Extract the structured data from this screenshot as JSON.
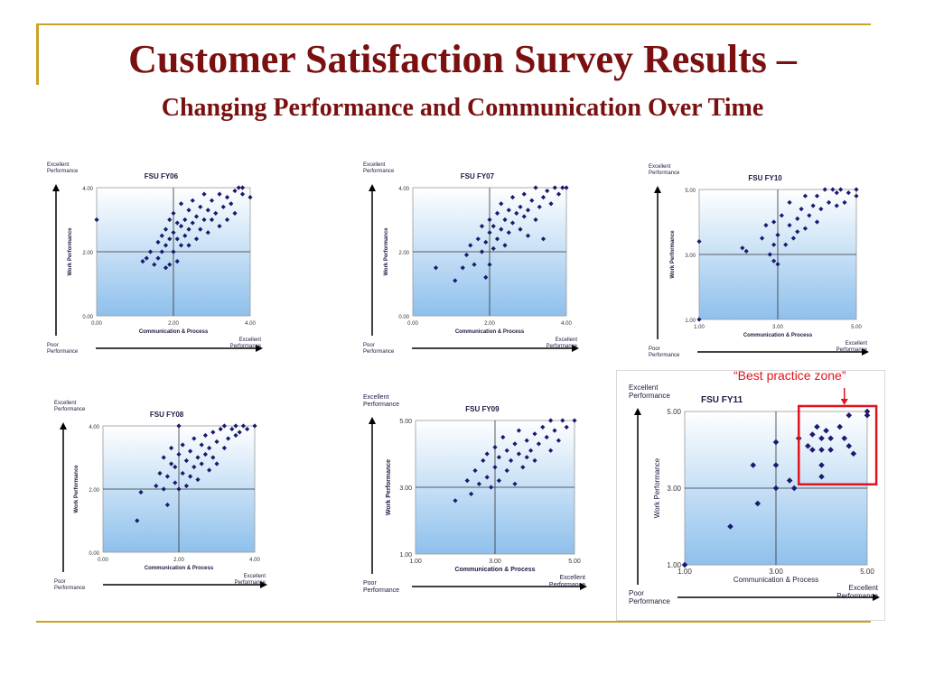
{
  "header": {
    "title": "Customer Satisfaction Survey Results –",
    "subtitle": "Changing Performance and Communication Over Time"
  },
  "annotation": {
    "text": "“Best practice zone”",
    "color": "#e0141e"
  },
  "colors": {
    "accent_gold": "#c9a227",
    "title_red": "#7a1010",
    "marker": "#1a1a6e",
    "plot_bg_top": "#ffffff",
    "plot_bg_bottom": "#8ec0ec"
  },
  "chart_data": [
    {
      "type": "scatter",
      "title": "FSU FY06",
      "xlabel": "Communication & Process",
      "ylabel": "Work Performance",
      "corner_labels": {
        "top_left": [
          "Excellent",
          "Performance"
        ],
        "bottom_left": [
          "Poor",
          "Performance"
        ],
        "bottom_right": [
          "Excellent",
          "Performance"
        ]
      },
      "xlim": [
        0,
        4
      ],
      "ylim": [
        0,
        4
      ],
      "xticks": [
        "0.00",
        "2.00",
        "4.00"
      ],
      "yticks": [
        "0.00",
        "2.00",
        "4.00"
      ],
      "points": [
        [
          0,
          3
        ],
        [
          1.2,
          1.7
        ],
        [
          1.3,
          1.8
        ],
        [
          1.4,
          2.0
        ],
        [
          1.5,
          1.6
        ],
        [
          1.6,
          1.8
        ],
        [
          1.6,
          2.3
        ],
        [
          1.7,
          2.0
        ],
        [
          1.7,
          2.5
        ],
        [
          1.8,
          1.5
        ],
        [
          1.8,
          2.2
        ],
        [
          1.8,
          2.7
        ],
        [
          1.9,
          1.6
        ],
        [
          1.9,
          2.4
        ],
        [
          1.9,
          3.0
        ],
        [
          2.0,
          2.0
        ],
        [
          2.0,
          2.6
        ],
        [
          2.0,
          3.2
        ],
        [
          2.1,
          1.7
        ],
        [
          2.1,
          2.4
        ],
        [
          2.1,
          2.9
        ],
        [
          2.2,
          2.2
        ],
        [
          2.2,
          2.8
        ],
        [
          2.2,
          3.5
        ],
        [
          2.3,
          2.5
        ],
        [
          2.3,
          3.0
        ],
        [
          2.4,
          2.2
        ],
        [
          2.4,
          2.7
        ],
        [
          2.4,
          3.3
        ],
        [
          2.5,
          2.9
        ],
        [
          2.5,
          3.6
        ],
        [
          2.6,
          2.4
        ],
        [
          2.6,
          3.1
        ],
        [
          2.7,
          2.7
        ],
        [
          2.7,
          3.4
        ],
        [
          2.8,
          3.0
        ],
        [
          2.8,
          3.8
        ],
        [
          2.9,
          2.6
        ],
        [
          2.9,
          3.3
        ],
        [
          3.0,
          3.0
        ],
        [
          3.0,
          3.6
        ],
        [
          3.1,
          3.2
        ],
        [
          3.2,
          2.8
        ],
        [
          3.2,
          3.8
        ],
        [
          3.3,
          3.4
        ],
        [
          3.4,
          3.0
        ],
        [
          3.4,
          3.7
        ],
        [
          3.5,
          3.5
        ],
        [
          3.6,
          3.9
        ],
        [
          3.6,
          3.2
        ],
        [
          3.7,
          4.0
        ],
        [
          3.8,
          3.8
        ],
        [
          3.8,
          4.0
        ],
        [
          4.0,
          3.7
        ]
      ]
    },
    {
      "type": "scatter",
      "title": "FSU FY07",
      "xlabel": "Communication & Process",
      "ylabel": "Work Performance",
      "corner_labels": {
        "top_left": [
          "Excellent",
          "Performance"
        ],
        "bottom_left": [
          "Poor",
          "Performance"
        ],
        "bottom_right": [
          "Excellent",
          "Performance"
        ]
      },
      "xlim": [
        0,
        4
      ],
      "ylim": [
        0,
        4
      ],
      "xticks": [
        "0.00",
        "2.00",
        "4.00"
      ],
      "yticks": [
        "0.00",
        "2.00",
        "4.00"
      ],
      "points": [
        [
          0.6,
          1.5
        ],
        [
          1.1,
          1.1
        ],
        [
          1.3,
          1.5
        ],
        [
          1.4,
          1.9
        ],
        [
          1.5,
          2.2
        ],
        [
          1.6,
          1.6
        ],
        [
          1.7,
          2.4
        ],
        [
          1.8,
          2.0
        ],
        [
          1.8,
          2.8
        ],
        [
          1.9,
          1.2
        ],
        [
          1.9,
          2.3
        ],
        [
          2.0,
          1.6
        ],
        [
          2.0,
          2.6
        ],
        [
          2.0,
          3.0
        ],
        [
          2.1,
          2.1
        ],
        [
          2.1,
          2.8
        ],
        [
          2.2,
          2.4
        ],
        [
          2.2,
          3.2
        ],
        [
          2.3,
          2.7
        ],
        [
          2.3,
          3.5
        ],
        [
          2.4,
          2.2
        ],
        [
          2.4,
          3.0
        ],
        [
          2.5,
          2.6
        ],
        [
          2.5,
          3.3
        ],
        [
          2.6,
          2.9
        ],
        [
          2.6,
          3.7
        ],
        [
          2.7,
          3.2
        ],
        [
          2.8,
          2.7
        ],
        [
          2.8,
          3.4
        ],
        [
          2.9,
          3.1
        ],
        [
          2.9,
          3.8
        ],
        [
          3.0,
          3.3
        ],
        [
          3.0,
          2.5
        ],
        [
          3.1,
          3.6
        ],
        [
          3.2,
          3.0
        ],
        [
          3.2,
          4.0
        ],
        [
          3.3,
          3.4
        ],
        [
          3.4,
          3.7
        ],
        [
          3.4,
          2.4
        ],
        [
          3.5,
          3.9
        ],
        [
          3.6,
          3.5
        ],
        [
          3.7,
          4.0
        ],
        [
          3.8,
          3.8
        ],
        [
          3.9,
          4.0
        ],
        [
          4.0,
          4.0
        ]
      ]
    },
    {
      "type": "scatter",
      "title": "FSU FY10",
      "xlabel": "Communication & Process",
      "ylabel": "Work Performance",
      "corner_labels": {
        "top_left": [
          "Excellent",
          "Performance"
        ],
        "bottom_left": [
          "Poor",
          "Performance"
        ],
        "bottom_right": [
          "Excellent",
          "Performance"
        ]
      },
      "xlim": [
        1,
        5
      ],
      "ylim": [
        1,
        5
      ],
      "xticks": [
        "1.00",
        "3.00",
        "5.00"
      ],
      "yticks": [
        "1.00",
        "3.00",
        "5.00"
      ],
      "points": [
        [
          1,
          1
        ],
        [
          1,
          3.4
        ],
        [
          2.1,
          3.2
        ],
        [
          2.2,
          3.1
        ],
        [
          2.6,
          3.5
        ],
        [
          2.7,
          3.9
        ],
        [
          2.8,
          3.0
        ],
        [
          2.9,
          2.8
        ],
        [
          2.9,
          3.3
        ],
        [
          2.9,
          4.0
        ],
        [
          3.0,
          2.7
        ],
        [
          3.0,
          3.6
        ],
        [
          3.1,
          4.2
        ],
        [
          3.2,
          3.3
        ],
        [
          3.3,
          3.9
        ],
        [
          3.3,
          4.6
        ],
        [
          3.4,
          3.5
        ],
        [
          3.5,
          4.1
        ],
        [
          3.5,
          3.7
        ],
        [
          3.6,
          4.4
        ],
        [
          3.7,
          3.8
        ],
        [
          3.7,
          4.8
        ],
        [
          3.8,
          4.2
        ],
        [
          3.9,
          4.5
        ],
        [
          4.0,
          4.0
        ],
        [
          4.0,
          4.8
        ],
        [
          4.1,
          4.4
        ],
        [
          4.2,
          5.0
        ],
        [
          4.3,
          4.6
        ],
        [
          4.4,
          5.0
        ],
        [
          4.5,
          4.5
        ],
        [
          4.5,
          4.9
        ],
        [
          4.6,
          5.0
        ],
        [
          4.7,
          4.6
        ],
        [
          4.8,
          4.9
        ],
        [
          5.0,
          5.0
        ],
        [
          5.0,
          4.8
        ]
      ]
    },
    {
      "type": "scatter",
      "title": "FSU FY08",
      "xlabel": "Communication & Process",
      "ylabel": "Work Performance",
      "corner_labels": {
        "top_left": [
          "Excellent",
          "Performance"
        ],
        "bottom_left": [
          "Poor",
          "Performance"
        ],
        "bottom_right": [
          "Excellent",
          "Performance"
        ]
      },
      "xlim": [
        0,
        4
      ],
      "ylim": [
        0,
        4
      ],
      "xticks": [
        "0.00",
        "2.00",
        "4.00"
      ],
      "yticks": [
        "0.00",
        "2.00",
        "4.00"
      ],
      "points": [
        [
          0.9,
          1.0
        ],
        [
          1.0,
          1.9
        ],
        [
          1.4,
          2.1
        ],
        [
          1.5,
          2.5
        ],
        [
          1.6,
          2.0
        ],
        [
          1.6,
          3.0
        ],
        [
          1.7,
          1.5
        ],
        [
          1.7,
          2.4
        ],
        [
          1.8,
          2.8
        ],
        [
          1.8,
          3.3
        ],
        [
          1.9,
          2.2
        ],
        [
          1.9,
          2.7
        ],
        [
          2.0,
          2.0
        ],
        [
          2.0,
          3.1
        ],
        [
          2.0,
          4.0
        ],
        [
          2.1,
          2.5
        ],
        [
          2.1,
          3.4
        ],
        [
          2.2,
          2.1
        ],
        [
          2.2,
          2.9
        ],
        [
          2.3,
          2.4
        ],
        [
          2.3,
          3.2
        ],
        [
          2.4,
          2.7
        ],
        [
          2.4,
          3.6
        ],
        [
          2.5,
          2.3
        ],
        [
          2.5,
          3.0
        ],
        [
          2.6,
          2.8
        ],
        [
          2.6,
          3.4
        ],
        [
          2.7,
          3.1
        ],
        [
          2.7,
          3.7
        ],
        [
          2.8,
          2.6
        ],
        [
          2.8,
          3.3
        ],
        [
          2.9,
          3.0
        ],
        [
          2.9,
          3.8
        ],
        [
          3.0,
          3.5
        ],
        [
          3.0,
          2.8
        ],
        [
          3.1,
          3.9
        ],
        [
          3.2,
          3.3
        ],
        [
          3.2,
          4.0
        ],
        [
          3.3,
          3.6
        ],
        [
          3.4,
          3.9
        ],
        [
          3.5,
          4.0
        ],
        [
          3.5,
          3.7
        ],
        [
          3.6,
          3.8
        ],
        [
          3.7,
          4.0
        ],
        [
          3.8,
          3.9
        ],
        [
          4.0,
          4.0
        ]
      ]
    },
    {
      "type": "scatter",
      "title": "FSU FY09",
      "xlabel": "Communication & Process",
      "ylabel": "Work Performance",
      "corner_labels": {
        "top_left": [
          "Excellent",
          "Performance"
        ],
        "bottom_left": [
          "Poor",
          "Performance"
        ],
        "bottom_right": [
          "Excellent",
          "Performance"
        ]
      },
      "xlim": [
        1,
        5
      ],
      "ylim": [
        1,
        5
      ],
      "xticks": [
        "1.00",
        "3.00",
        "5.00"
      ],
      "yticks": [
        "1.00",
        "3.00",
        "5.00"
      ],
      "points": [
        [
          2.0,
          2.6
        ],
        [
          2.3,
          3.2
        ],
        [
          2.4,
          2.8
        ],
        [
          2.5,
          3.5
        ],
        [
          2.6,
          3.1
        ],
        [
          2.7,
          3.8
        ],
        [
          2.8,
          3.3
        ],
        [
          2.8,
          4.0
        ],
        [
          2.9,
          3.0
        ],
        [
          3.0,
          3.6
        ],
        [
          3.0,
          4.2
        ],
        [
          3.1,
          3.2
        ],
        [
          3.1,
          3.9
        ],
        [
          3.2,
          4.5
        ],
        [
          3.3,
          3.5
        ],
        [
          3.3,
          4.1
        ],
        [
          3.4,
          3.8
        ],
        [
          3.5,
          4.3
        ],
        [
          3.5,
          3.1
        ],
        [
          3.6,
          4.0
        ],
        [
          3.6,
          4.7
        ],
        [
          3.7,
          3.6
        ],
        [
          3.8,
          4.4
        ],
        [
          3.8,
          3.9
        ],
        [
          3.9,
          4.1
        ],
        [
          4.0,
          4.6
        ],
        [
          4.0,
          3.8
        ],
        [
          4.1,
          4.3
        ],
        [
          4.2,
          4.8
        ],
        [
          4.3,
          4.5
        ],
        [
          4.4,
          4.1
        ],
        [
          4.4,
          5.0
        ],
        [
          4.5,
          4.7
        ],
        [
          4.6,
          4.4
        ],
        [
          4.7,
          5.0
        ],
        [
          4.8,
          4.8
        ],
        [
          5.0,
          5.0
        ]
      ]
    },
    {
      "type": "scatter",
      "title": "FSU FY11",
      "xlabel": "Communication & Process",
      "ylabel": "Work Performance",
      "corner_labels": {
        "top_left": [
          "Excellent",
          "Performance"
        ],
        "bottom_left": [
          "Poor",
          "Performance"
        ],
        "bottom_right": [
          "Excellent",
          "Performance"
        ]
      },
      "xlim": [
        1,
        5
      ],
      "ylim": [
        1,
        5
      ],
      "xticks": [
        "1.00",
        "3.00",
        "5.00"
      ],
      "yticks": [
        "1.00",
        "3.00",
        "5.00"
      ],
      "points": [
        [
          1.0,
          1.0
        ],
        [
          2.0,
          2.0
        ],
        [
          2.5,
          3.6
        ],
        [
          2.6,
          2.6
        ],
        [
          3.0,
          3.0
        ],
        [
          3.0,
          3.6
        ],
        [
          3.0,
          4.2
        ],
        [
          3.3,
          3.2
        ],
        [
          3.4,
          3.0
        ],
        [
          3.5,
          4.3
        ],
        [
          3.7,
          4.1
        ],
        [
          3.8,
          4.0
        ],
        [
          3.8,
          4.4
        ],
        [
          3.9,
          4.6
        ],
        [
          4.0,
          3.3
        ],
        [
          4.0,
          3.6
        ],
        [
          4.0,
          4.0
        ],
        [
          4.0,
          4.3
        ],
        [
          4.1,
          4.5
        ],
        [
          4.2,
          4.0
        ],
        [
          4.2,
          4.3
        ],
        [
          4.4,
          4.6
        ],
        [
          4.5,
          4.3
        ],
        [
          4.6,
          4.1
        ],
        [
          4.6,
          4.9
        ],
        [
          4.7,
          3.9
        ],
        [
          5.0,
          5.0
        ],
        [
          5.0,
          4.9
        ]
      ]
    }
  ]
}
